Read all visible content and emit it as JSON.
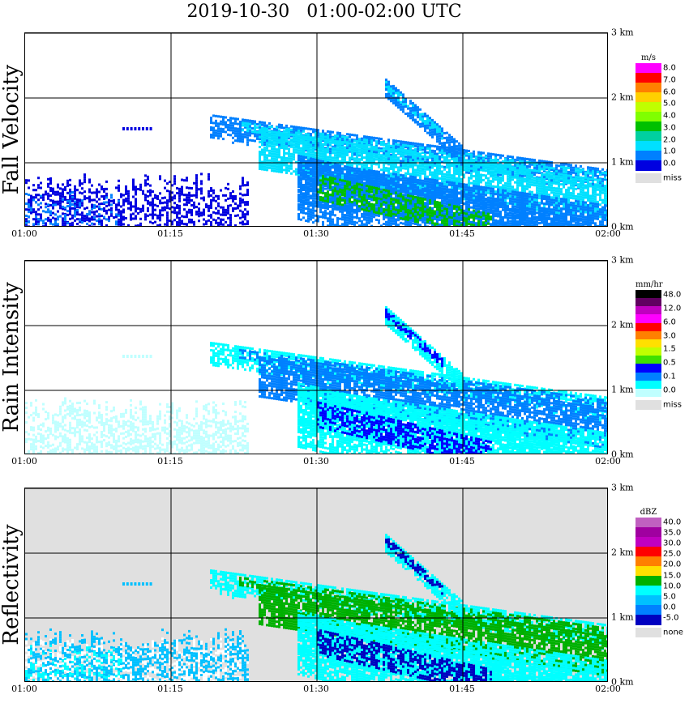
{
  "title": "2019-10-30   01:00-02:00 UTC",
  "x_ticks": [
    "01:00",
    "01:15",
    "01:30",
    "01:45",
    "02:00"
  ],
  "y_ticks": [
    "0 km",
    "1 km",
    "2 km",
    "3 km"
  ],
  "panels": [
    {
      "label": "Fall Velocity",
      "unit": "m/s",
      "colors": [
        "#ff00ff",
        "#ff0000",
        "#ff8000",
        "#ffd000",
        "#c0ff00",
        "#80ff00",
        "#00c000",
        "#00d0a0",
        "#00e0ff",
        "#0080ff",
        "#0000e0"
      ],
      "color_labels": [
        "8.0",
        "7.0",
        "6.0",
        "5.0",
        "4.0",
        "3.0",
        "2.0",
        "1.0",
        "0.0"
      ],
      "miss_color": "#e0e0e0",
      "miss_label": "miss"
    },
    {
      "label": "Rain Intensity",
      "unit": "mm/hr",
      "colors": [
        "#000000",
        "#600060",
        "#c000c0",
        "#ff00ff",
        "#ff0000",
        "#ff8000",
        "#ffe000",
        "#c0ff00",
        "#40e000",
        "#0000ff",
        "#0080ff",
        "#00ffff",
        "#c0ffff"
      ],
      "color_labels": [
        "48.0",
        "12.0",
        "6.0",
        "3.0",
        "1.5",
        "0.5",
        "0.1",
        "0.0"
      ],
      "miss_color": "#e0e0e0",
      "miss_label": "miss"
    },
    {
      "label": "Reflectivity",
      "unit": "dBZ",
      "colors": [
        "#c060c0",
        "#a000a0",
        "#c000c0",
        "#ff0000",
        "#ff8000",
        "#ffe000",
        "#00b000",
        "#00ffff",
        "#00c0ff",
        "#0080ff",
        "#0000c0"
      ],
      "color_labels": [
        "40.0",
        "35.0",
        "30.0",
        "25.0",
        "20.0",
        "15.0",
        "10.0",
        "5.0",
        "0.0",
        "-5.0"
      ],
      "miss_color": "#e0e0e0",
      "miss_label": "none"
    }
  ],
  "chart_data": {
    "type": "heatmap",
    "x": {
      "range": [
        "01:00",
        "02:00"
      ],
      "ticks": [
        "01:00",
        "01:15",
        "01:30",
        "01:45",
        "02:00"
      ]
    },
    "y": {
      "unit": "km",
      "range": [
        0,
        3.0
      ],
      "ticks": [
        0,
        1,
        2,
        3
      ]
    },
    "grid": true,
    "features": [
      {
        "name_ref": "near-surface echo",
        "x_start": "01:00",
        "x_end": "01:23",
        "y_top_km": 0.9
      },
      {
        "name_ref": "upper band A",
        "x_start": "01:19",
        "x_end": "02:00",
        "y_km_start": 1.7,
        "y_km_end": 0.9
      },
      {
        "name_ref": "upper band B",
        "x_start": "01:24",
        "x_end": "02:00",
        "y_km_start": 1.6,
        "y_km_end": 0.8
      },
      {
        "name_ref": "elevated streak",
        "x_start": "01:37",
        "x_end": "01:43",
        "y_km_start": 2.3,
        "y_km_end": 1.3
      },
      {
        "name_ref": "lower fall streak",
        "x_start": "01:28",
        "x_end": "02:00",
        "y_km_start": 1.0,
        "y_km_end": 0.0
      }
    ]
  }
}
